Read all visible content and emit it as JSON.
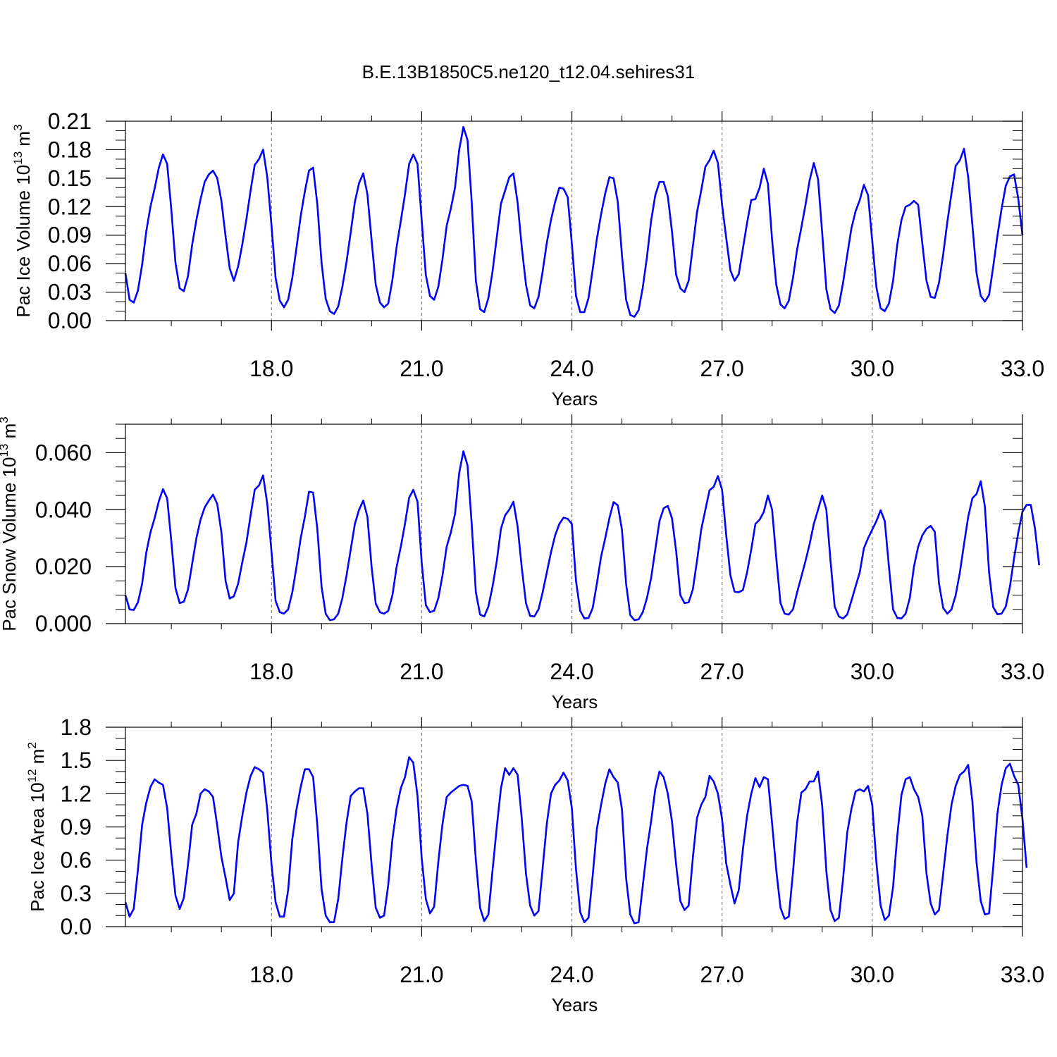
{
  "chart_data": {
    "title": "B.E.13B1850C5.ne120_t12.04.sehires31",
    "line_color": "#0000ff",
    "xlim": [
      15.083,
      33.0
    ],
    "x_tick_labels": [
      "18.0",
      "21.0",
      "24.0",
      "27.0",
      "30.0",
      "33.0"
    ],
    "x_tick_values": [
      18,
      21,
      24,
      27,
      30,
      33
    ],
    "x_first": 15.083,
    "x_step": 0.083333,
    "panels": [
      {
        "type": "line",
        "xlabel": "Years",
        "ylabel_prefix": "Pac Ice Volume 10",
        "ylabel_exp": "13",
        "ylabel_unit": "m",
        "ylabel_unit_exp": "3",
        "ylim": [
          0,
          0.21
        ],
        "y_tick_labels": [
          "0.00",
          "0.03",
          "0.06",
          "0.09",
          "0.12",
          "0.15",
          "0.18",
          "0.21"
        ],
        "y_tick_values": [
          0,
          0.03,
          0.06,
          0.09,
          0.12,
          0.15,
          0.18,
          0.21
        ],
        "y_minor_step": 0.01,
        "values": [
          0.05,
          0.022,
          0.019,
          0.032,
          0.059,
          0.094,
          0.12,
          0.139,
          0.161,
          0.175,
          0.165,
          0.117,
          0.061,
          0.034,
          0.031,
          0.047,
          0.08,
          0.106,
          0.128,
          0.146,
          0.154,
          0.158,
          0.15,
          0.126,
          0.089,
          0.055,
          0.042,
          0.057,
          0.08,
          0.107,
          0.137,
          0.164,
          0.17,
          0.18,
          0.151,
          0.101,
          0.045,
          0.021,
          0.014,
          0.022,
          0.045,
          0.077,
          0.11,
          0.136,
          0.158,
          0.161,
          0.122,
          0.061,
          0.023,
          0.01,
          0.007,
          0.015,
          0.036,
          0.062,
          0.093,
          0.125,
          0.145,
          0.155,
          0.133,
          0.085,
          0.038,
          0.019,
          0.014,
          0.018,
          0.043,
          0.078,
          0.105,
          0.133,
          0.165,
          0.175,
          0.165,
          0.106,
          0.048,
          0.026,
          0.022,
          0.036,
          0.065,
          0.1,
          0.118,
          0.14,
          0.18,
          0.204,
          0.19,
          0.125,
          0.042,
          0.012,
          0.009,
          0.024,
          0.052,
          0.088,
          0.123,
          0.137,
          0.151,
          0.155,
          0.124,
          0.077,
          0.038,
          0.016,
          0.013,
          0.025,
          0.052,
          0.082,
          0.106,
          0.125,
          0.14,
          0.139,
          0.13,
          0.081,
          0.026,
          0.009,
          0.009,
          0.024,
          0.054,
          0.086,
          0.112,
          0.134,
          0.151,
          0.15,
          0.125,
          0.069,
          0.022,
          0.006,
          0.004,
          0.011,
          0.035,
          0.067,
          0.105,
          0.132,
          0.146,
          0.146,
          0.131,
          0.094,
          0.048,
          0.034,
          0.03,
          0.042,
          0.078,
          0.114,
          0.137,
          0.162,
          0.169,
          0.179,
          0.166,
          0.122,
          0.087,
          0.053,
          0.042,
          0.049,
          0.076,
          0.103,
          0.127,
          0.128,
          0.14,
          0.16,
          0.144,
          0.085,
          0.038,
          0.017,
          0.013,
          0.021,
          0.045,
          0.075,
          0.098,
          0.122,
          0.148,
          0.166,
          0.149,
          0.092,
          0.033,
          0.012,
          0.008,
          0.016,
          0.04,
          0.069,
          0.097,
          0.115,
          0.127,
          0.143,
          0.132,
          0.084,
          0.035,
          0.013,
          0.01,
          0.018,
          0.042,
          0.08,
          0.106,
          0.12,
          0.122,
          0.126,
          0.122,
          0.081,
          0.042,
          0.025,
          0.024,
          0.04,
          0.07,
          0.104,
          0.134,
          0.163,
          0.169,
          0.181,
          0.151,
          0.101,
          0.05,
          0.026,
          0.02,
          0.027,
          0.057,
          0.089,
          0.118,
          0.142,
          0.152,
          0.154,
          0.128,
          0.09
        ]
      },
      {
        "type": "line",
        "xlabel": "Years",
        "ylabel_prefix": "Pac Snow Volume 10",
        "ylabel_exp": "13",
        "ylabel_unit": "m",
        "ylabel_unit_exp": "3",
        "ylim": [
          0,
          0.07
        ],
        "y_tick_labels": [
          "0.000",
          "0.020",
          "0.040",
          "0.060"
        ],
        "y_tick_values": [
          0,
          0.02,
          0.04,
          0.06
        ],
        "y_minor_step": 0.005,
        "values": [
          0.01,
          0.005,
          0.0048,
          0.0075,
          0.014,
          0.025,
          0.032,
          0.037,
          0.043,
          0.0472,
          0.044,
          0.029,
          0.0125,
          0.0072,
          0.0077,
          0.012,
          0.021,
          0.03,
          0.0365,
          0.0408,
          0.0432,
          0.0453,
          0.042,
          0.032,
          0.015,
          0.0088,
          0.0096,
          0.014,
          0.0215,
          0.0285,
          0.038,
          0.047,
          0.0485,
          0.052,
          0.042,
          0.0255,
          0.008,
          0.004,
          0.0035,
          0.005,
          0.011,
          0.02,
          0.03,
          0.0375,
          0.0463,
          0.046,
          0.033,
          0.013,
          0.0035,
          0.0012,
          0.0015,
          0.0035,
          0.009,
          0.017,
          0.026,
          0.035,
          0.04,
          0.0432,
          0.0375,
          0.02,
          0.007,
          0.004,
          0.0035,
          0.0045,
          0.01,
          0.02,
          0.027,
          0.035,
          0.0442,
          0.047,
          0.0428,
          0.0215,
          0.0065,
          0.004,
          0.0045,
          0.009,
          0.017,
          0.027,
          0.032,
          0.0385,
          0.053,
          0.0605,
          0.0555,
          0.035,
          0.011,
          0.0032,
          0.0025,
          0.006,
          0.013,
          0.022,
          0.0333,
          0.038,
          0.04,
          0.0428,
          0.034,
          0.0195,
          0.0072,
          0.0027,
          0.0025,
          0.005,
          0.011,
          0.018,
          0.025,
          0.031,
          0.035,
          0.0372,
          0.0368,
          0.035,
          0.015,
          0.0045,
          0.0018,
          0.002,
          0.0055,
          0.014,
          0.0235,
          0.03,
          0.037,
          0.0427,
          0.0415,
          0.033,
          0.014,
          0.003,
          0.0012,
          0.0015,
          0.004,
          0.009,
          0.016,
          0.026,
          0.036,
          0.0405,
          0.0413,
          0.037,
          0.0255,
          0.01,
          0.0072,
          0.0075,
          0.012,
          0.022,
          0.033,
          0.04,
          0.0468,
          0.048,
          0.0518,
          0.047,
          0.031,
          0.017,
          0.0112,
          0.011,
          0.0118,
          0.018,
          0.026,
          0.035,
          0.0365,
          0.0392,
          0.045,
          0.04,
          0.023,
          0.0072,
          0.0035,
          0.0032,
          0.005,
          0.011,
          0.0165,
          0.022,
          0.028,
          0.035,
          0.04,
          0.045,
          0.04,
          0.022,
          0.006,
          0.0025,
          0.0018,
          0.0032,
          0.008,
          0.013,
          0.018,
          0.0265,
          0.03,
          0.033,
          0.036,
          0.0398,
          0.036,
          0.02,
          0.005,
          0.002,
          0.0018,
          0.0035,
          0.009,
          0.02,
          0.027,
          0.031,
          0.0333,
          0.0343,
          0.0322,
          0.014,
          0.0055,
          0.0035,
          0.005,
          0.01,
          0.018,
          0.028,
          0.0375,
          0.044,
          0.0455,
          0.05,
          0.041,
          0.018,
          0.0058,
          0.0033,
          0.0035,
          0.006,
          0.013,
          0.023,
          0.032,
          0.0393,
          0.0417,
          0.0417,
          0.0335,
          0.0205
        ]
      },
      {
        "type": "line",
        "xlabel": "Years",
        "ylabel_prefix": "Pac Ice Area 10",
        "ylabel_exp": "12",
        "ylabel_unit": "m",
        "ylabel_unit_exp": "2",
        "ylim": [
          0,
          1.8
        ],
        "y_tick_labels": [
          "0.0",
          "0.3",
          "0.6",
          "0.9",
          "1.2",
          "1.5",
          "1.8"
        ],
        "y_tick_values": [
          0,
          0.3,
          0.6,
          0.9,
          1.2,
          1.5,
          1.8
        ],
        "y_minor_step": 0.1,
        "values": [
          0.22,
          0.09,
          0.16,
          0.52,
          0.92,
          1.12,
          1.26,
          1.33,
          1.3,
          1.28,
          1.07,
          0.65,
          0.28,
          0.16,
          0.26,
          0.56,
          0.92,
          1.02,
          1.2,
          1.24,
          1.22,
          1.17,
          0.91,
          0.63,
          0.44,
          0.24,
          0.3,
          0.76,
          1.0,
          1.21,
          1.36,
          1.44,
          1.42,
          1.39,
          1.05,
          0.57,
          0.22,
          0.09,
          0.09,
          0.33,
          0.79,
          1.06,
          1.26,
          1.42,
          1.42,
          1.35,
          0.91,
          0.34,
          0.1,
          0.04,
          0.04,
          0.25,
          0.62,
          0.94,
          1.18,
          1.22,
          1.25,
          1.25,
          1.02,
          0.56,
          0.17,
          0.08,
          0.1,
          0.38,
          0.79,
          1.07,
          1.25,
          1.35,
          1.53,
          1.48,
          1.18,
          0.62,
          0.25,
          0.12,
          0.18,
          0.59,
          0.93,
          1.17,
          1.21,
          1.24,
          1.27,
          1.28,
          1.27,
          1.13,
          0.6,
          0.17,
          0.05,
          0.11,
          0.51,
          0.9,
          1.25,
          1.43,
          1.37,
          1.43,
          1.37,
          0.97,
          0.48,
          0.19,
          0.1,
          0.14,
          0.53,
          0.93,
          1.2,
          1.28,
          1.32,
          1.39,
          1.32,
          1.07,
          0.52,
          0.13,
          0.04,
          0.08,
          0.46,
          0.88,
          1.1,
          1.29,
          1.42,
          1.35,
          1.3,
          1.06,
          0.44,
          0.11,
          0.03,
          0.04,
          0.37,
          0.7,
          0.95,
          1.24,
          1.4,
          1.35,
          1.2,
          0.95,
          0.56,
          0.23,
          0.15,
          0.19,
          0.62,
          0.98,
          1.1,
          1.17,
          1.36,
          1.31,
          1.2,
          0.97,
          0.57,
          0.38,
          0.21,
          0.33,
          0.7,
          1.0,
          1.2,
          1.34,
          1.26,
          1.35,
          1.33,
          0.93,
          0.51,
          0.17,
          0.07,
          0.09,
          0.49,
          0.94,
          1.21,
          1.24,
          1.31,
          1.31,
          1.4,
          1.09,
          0.5,
          0.15,
          0.05,
          0.08,
          0.43,
          0.85,
          1.06,
          1.22,
          1.24,
          1.22,
          1.27,
          1.1,
          0.58,
          0.19,
          0.06,
          0.1,
          0.36,
          0.82,
          1.19,
          1.33,
          1.35,
          1.24,
          1.17,
          1.0,
          0.48,
          0.21,
          0.11,
          0.15,
          0.48,
          0.82,
          1.1,
          1.27,
          1.37,
          1.4,
          1.46,
          1.13,
          0.58,
          0.23,
          0.11,
          0.12,
          0.54,
          1.02,
          1.28,
          1.43,
          1.47,
          1.36,
          1.28,
          0.97,
          0.53
        ]
      }
    ]
  }
}
